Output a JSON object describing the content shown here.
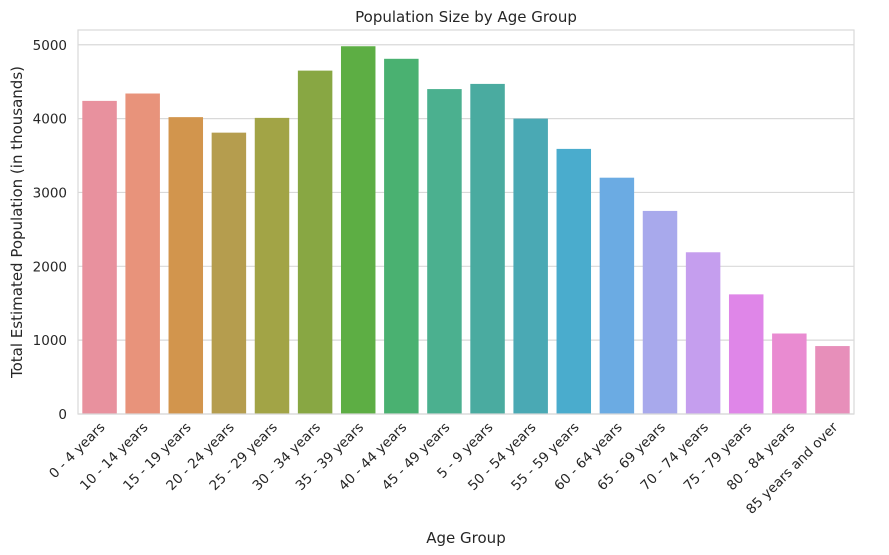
{
  "chart_data": {
    "type": "bar",
    "title": "Population Size by Age Group",
    "xlabel": "Age Group",
    "ylabel": "Total Estimated Population (in thousands)",
    "ylim": [
      0,
      5200
    ],
    "yticks": [
      0,
      1000,
      2000,
      3000,
      4000,
      5000
    ],
    "grid": true,
    "categories": [
      "0 - 4 years",
      "10 - 14 years",
      "15 - 19 years",
      "20 - 24 years",
      "25 - 29 years",
      "30 - 34 years",
      "35 - 39 years",
      "40 - 44 years",
      "45 - 49 years",
      "5 - 9 years",
      "50 - 54 years",
      "55 - 59 years",
      "60 - 64 years",
      "65 - 69 years",
      "70 - 74 years",
      "75 - 79 years",
      "80 - 84 years",
      "85 years and over"
    ],
    "values": [
      4240,
      4340,
      4020,
      3810,
      4010,
      4650,
      4980,
      4810,
      4400,
      4470,
      4000,
      3590,
      3200,
      2750,
      2190,
      1620,
      1090,
      920
    ],
    "colors": [
      "#e8919e",
      "#e8937b",
      "#d2954d",
      "#b59d4e",
      "#a2a446",
      "#88a743",
      "#5dae44",
      "#4ab171",
      "#4bb08f",
      "#4aaba0",
      "#4aa9b4",
      "#4aaccd",
      "#6babe3",
      "#a8a9ec",
      "#c59eee",
      "#df86e8",
      "#e98bd1",
      "#e78fba"
    ]
  }
}
